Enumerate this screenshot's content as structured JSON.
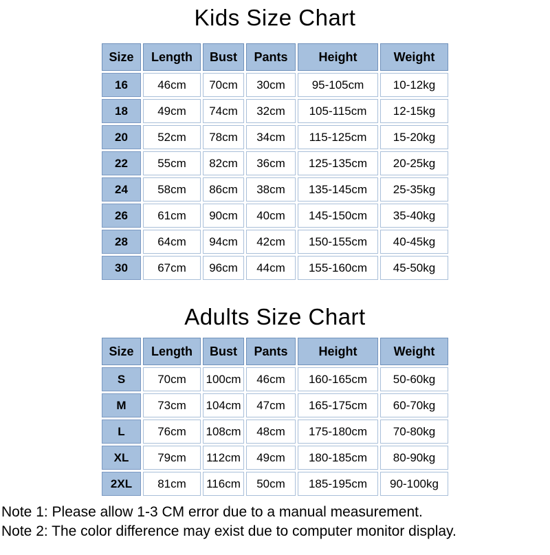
{
  "kids_chart": {
    "title": "Kids Size Chart",
    "columns": [
      "Size",
      "Length",
      "Bust",
      "Pants",
      "Height",
      "Weight"
    ],
    "rows": [
      [
        "16",
        "46cm",
        "70cm",
        "30cm",
        "95-105cm",
        "10-12kg"
      ],
      [
        "18",
        "49cm",
        "74cm",
        "32cm",
        "105-115cm",
        "12-15kg"
      ],
      [
        "20",
        "52cm",
        "78cm",
        "34cm",
        "115-125cm",
        "15-20kg"
      ],
      [
        "22",
        "55cm",
        "82cm",
        "36cm",
        "125-135cm",
        "20-25kg"
      ],
      [
        "24",
        "58cm",
        "86cm",
        "38cm",
        "135-145cm",
        "25-35kg"
      ],
      [
        "26",
        "61cm",
        "90cm",
        "40cm",
        "145-150cm",
        "35-40kg"
      ],
      [
        "28",
        "64cm",
        "94cm",
        "42cm",
        "150-155cm",
        "40-45kg"
      ],
      [
        "30",
        "67cm",
        "96cm",
        "44cm",
        "155-160cm",
        "45-50kg"
      ]
    ]
  },
  "adults_chart": {
    "title": "Adults Size Chart",
    "columns": [
      "Size",
      "Length",
      "Bust",
      "Pants",
      "Height",
      "Weight"
    ],
    "rows": [
      [
        "S",
        "70cm",
        "100cm",
        "46cm",
        "160-165cm",
        "50-60kg"
      ],
      [
        "M",
        "73cm",
        "104cm",
        "47cm",
        "165-175cm",
        "60-70kg"
      ],
      [
        "L",
        "76cm",
        "108cm",
        "48cm",
        "175-180cm",
        "70-80kg"
      ],
      [
        "XL",
        "79cm",
        "112cm",
        "49cm",
        "180-185cm",
        "80-90kg"
      ],
      [
        "2XL",
        "81cm",
        "116cm",
        "50cm",
        "185-195cm",
        "90-100kg"
      ]
    ]
  },
  "notes": [
    "Note 1: Please allow 1-3 CM error due to a manual measurement.",
    "Note 2: The color difference may exist due to computer monitor display."
  ],
  "colors": {
    "header_fill": "#a6c0de",
    "header_border": "#6f90ba",
    "size_cell_border": "#7b99c2",
    "value_cell_border": "#a9bfd9",
    "text": "#000000",
    "page_background": "#ffffff"
  }
}
